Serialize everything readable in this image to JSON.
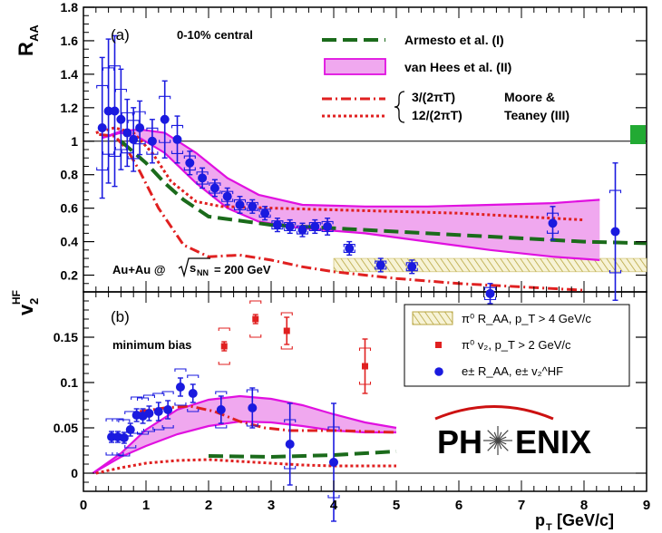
{
  "chart_data": [
    {
      "panel": "(a)",
      "type": "scatter",
      "ylabel": "R",
      "ylabel_sub": "AA",
      "xlim": [
        0,
        9
      ],
      "ylim": [
        0.1,
        1.8
      ],
      "yticks": [
        0.2,
        0.4,
        0.6,
        0.8,
        1,
        1.2,
        1.4,
        1.6,
        1.8
      ],
      "annotations": {
        "centrality": "0-10% central",
        "system_prefix": "Au+Au @",
        "sqrt": "s",
        "sqrt_sub": "NN",
        "system_suffix": "= 200 GeV"
      },
      "legend": {
        "armesto": "Armesto et al. (I)",
        "vanhees": "van Hees et al. (II)",
        "moore_a": "3/(2πT)",
        "moore_b": "12/(2πT)",
        "moore_name_1": "Moore &",
        "moore_name_2": "Teaney (III)"
      },
      "electron_RAA": {
        "x": [
          0.3,
          0.4,
          0.5,
          0.6,
          0.7,
          0.8,
          0.9,
          1.1,
          1.3,
          1.5,
          1.7,
          1.9,
          2.1,
          2.3,
          2.5,
          2.7,
          2.9,
          3.1,
          3.3,
          3.5,
          3.7,
          3.9,
          4.25,
          4.75,
          5.25,
          6.5,
          7.5,
          8.5
        ],
        "y": [
          1.08,
          1.18,
          1.18,
          1.13,
          1.05,
          1.01,
          1.08,
          1.0,
          1.13,
          1.01,
          0.87,
          0.78,
          0.72,
          0.67,
          0.62,
          0.61,
          0.57,
          0.5,
          0.49,
          0.47,
          0.49,
          0.49,
          0.36,
          0.26,
          0.25,
          0.09,
          0.51,
          0.46
        ],
        "err": [
          0.42,
          0.43,
          0.45,
          0.3,
          0.2,
          0.19,
          0.16,
          0.13,
          0.23,
          0.14,
          0.07,
          0.06,
          0.05,
          0.05,
          0.05,
          0.04,
          0.04,
          0.04,
          0.04,
          0.04,
          0.04,
          0.05,
          0.04,
          0.04,
          0.04,
          0.06,
          0.1,
          0.41
        ]
      },
      "systematic_box": 1.0,
      "curves": {
        "armesto": {
          "x": [
            0.6,
            1.0,
            1.3,
            1.6,
            2.0,
            3.0,
            4.0,
            5.0,
            6.0,
            7.0,
            8.0,
            9.0
          ],
          "y": [
            1.0,
            0.87,
            0.75,
            0.65,
            0.55,
            0.5,
            0.48,
            0.46,
            0.44,
            0.42,
            0.4,
            0.39
          ]
        },
        "vanhees_upper": {
          "x": [
            0.3,
            0.6,
            0.9,
            1.3,
            1.8,
            2.3,
            2.8,
            3.5,
            4.5,
            5.5,
            6.5,
            7.5,
            8.25
          ],
          "y": [
            1.02,
            1.06,
            1.07,
            1.05,
            0.93,
            0.78,
            0.68,
            0.62,
            0.61,
            0.61,
            0.62,
            0.63,
            0.65
          ]
        },
        "vanhees_lower": {
          "x": [
            0.3,
            0.6,
            0.9,
            1.3,
            1.8,
            2.3,
            2.8,
            3.5,
            4.5,
            5.5,
            6.5,
            7.5,
            8.25
          ],
          "y": [
            1.02,
            1.05,
            1.02,
            0.93,
            0.75,
            0.6,
            0.52,
            0.48,
            0.45,
            0.4,
            0.35,
            0.31,
            0.29
          ]
        },
        "moore_3": {
          "x": [
            0.25,
            0.5,
            0.7,
            0.9,
            1.2,
            1.6,
            2.0,
            2.5,
            3.0,
            3.5,
            4.0,
            5.0,
            6.0,
            7.0,
            8.0
          ],
          "y": [
            1.04,
            1.03,
            0.95,
            0.82,
            0.6,
            0.38,
            0.31,
            0.32,
            0.29,
            0.25,
            0.22,
            0.18,
            0.15,
            0.13,
            0.11
          ]
        },
        "moore_12": {
          "x": [
            0.2,
            0.5,
            0.8,
            1.1,
            1.4,
            1.8,
            2.2,
            3.0,
            4.0,
            5.0,
            6.0,
            7.0,
            8.0
          ],
          "y": [
            1.05,
            1.08,
            1.05,
            0.93,
            0.76,
            0.64,
            0.61,
            0.6,
            0.59,
            0.58,
            0.57,
            0.55,
            0.53
          ]
        }
      },
      "pi0_band": {
        "x": [
          4.0,
          9.0
        ],
        "y_low": 0.22,
        "y_high": 0.3
      }
    },
    {
      "panel": "(b)",
      "type": "scatter",
      "ylabel": "v",
      "ylabel_sub": "2",
      "ylabel_sup": "HF",
      "xlabel": "p",
      "xlabel_sub": "T",
      "xlabel_unit": "[GeV/c]",
      "xlim": [
        0,
        9
      ],
      "ylim": [
        -0.02,
        0.2
      ],
      "xticks": [
        0,
        1,
        2,
        3,
        4,
        5,
        6,
        7,
        8,
        9
      ],
      "yticks": [
        0,
        0.05,
        0.1,
        0.15
      ],
      "yticklabels": [
        "0",
        "0.05",
        "0.1",
        "0.15"
      ],
      "annotations": {
        "selection": "minimum bias",
        "logo_left": "PH",
        "logo_right": "ENIX"
      },
      "legend": {
        "pi0_raa": "π⁰ R_AA, p_T > 4 GeV/c",
        "pi0_v2": "π⁰ v₂, p_T > 2 GeV/c",
        "electron": "e± R_AA, e± v₂^HF"
      },
      "electron_v2": {
        "x": [
          0.45,
          0.55,
          0.65,
          0.75,
          0.85,
          0.95,
          1.05,
          1.2,
          1.35,
          1.55,
          1.75,
          2.2,
          2.7,
          3.3,
          4.0
        ],
        "y": [
          0.04,
          0.04,
          0.039,
          0.048,
          0.064,
          0.063,
          0.066,
          0.068,
          0.07,
          0.095,
          0.088,
          0.07,
          0.072,
          0.032,
          0.012
        ],
        "err": [
          0.006,
          0.006,
          0.006,
          0.007,
          0.007,
          0.008,
          0.008,
          0.01,
          0.01,
          0.01,
          0.01,
          0.015,
          0.022,
          0.045,
          0.065
        ]
      },
      "pi0_v2": {
        "x": [
          2.25,
          2.75,
          3.25,
          4.5
        ],
        "y": [
          0.14,
          0.17,
          0.157,
          0.118
        ],
        "err": [
          0.005,
          0.005,
          0.015,
          0.03
        ]
      },
      "curves": {
        "armesto": {
          "x": [
            2.0,
            3.0,
            4.0,
            5.0
          ],
          "y": [
            0.019,
            0.018,
            0.02,
            0.024
          ]
        },
        "vanhees_upper": {
          "x": [
            0.15,
            0.6,
            1.0,
            1.5,
            2.0,
            2.5,
            3.0,
            3.5,
            4.0,
            4.5,
            5.0
          ],
          "y": [
            0.0,
            0.022,
            0.048,
            0.07,
            0.081,
            0.085,
            0.082,
            0.075,
            0.065,
            0.056,
            0.05
          ]
        },
        "vanhees_lower": {
          "x": [
            0.15,
            0.6,
            1.0,
            1.5,
            2.0,
            2.5,
            3.0,
            3.5,
            4.0,
            4.5,
            5.0
          ],
          "y": [
            0.0,
            0.018,
            0.03,
            0.043,
            0.052,
            0.057,
            0.056,
            0.052,
            0.047,
            0.045,
            0.045
          ]
        },
        "moore_3": {
          "x": [
            0.9,
            1.3,
            1.7,
            2.1,
            2.5,
            2.9,
            3.3,
            3.7,
            4.1,
            4.5,
            5.0
          ],
          "y": [
            0.068,
            0.072,
            0.074,
            0.068,
            0.057,
            0.05,
            0.047,
            0.047,
            0.047,
            0.046,
            0.045
          ]
        },
        "moore_12": {
          "x": [
            0.2,
            0.6,
            1.0,
            1.5,
            2.0,
            2.5,
            3.0,
            3.5,
            4.0,
            4.5,
            5.0
          ],
          "y": [
            0.0,
            0.006,
            0.011,
            0.014,
            0.015,
            0.013,
            0.011,
            0.009,
            0.008,
            0.008,
            0.008
          ]
        }
      }
    }
  ],
  "colors": {
    "electron": "#1a1adf",
    "pi0": "#e02020",
    "armesto": "#1b6b1b",
    "vanhees_line": "#e010e0",
    "vanhees_fill": "#f0a8ef",
    "moore": "#e02020",
    "syst_box": "#22aa33",
    "band": "#c8b860"
  }
}
